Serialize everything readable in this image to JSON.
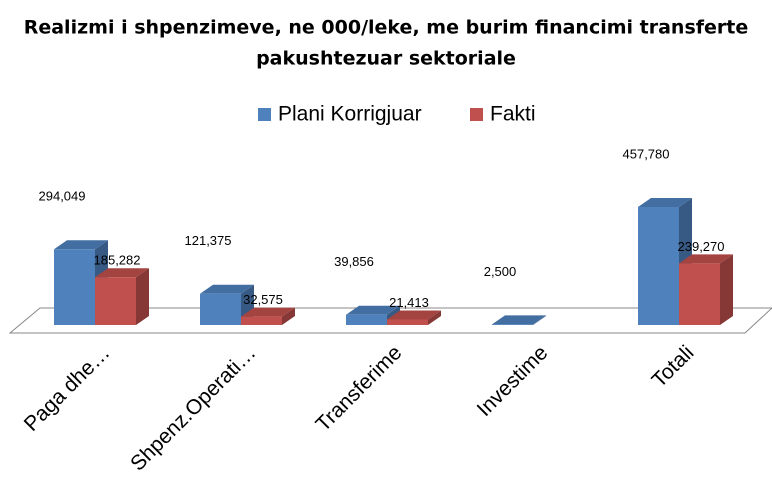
{
  "chart_data": {
    "type": "bar3d",
    "title": [
      "Realizmi i shpenzimeve, ne 000/leke, me burim financimi transferte",
      "pakushtezuar sektoriale"
    ],
    "categories": [
      "Paga dhe…",
      "Shpenz.Operati…",
      "Transferime",
      "Investime",
      "Totali"
    ],
    "series": [
      {
        "name": "Plani Korrigjuar",
        "color": "#4f81bd",
        "values": [
          294049,
          121375,
          39856,
          2500,
          457780
        ],
        "value_labels": [
          "294,049",
          "121,375",
          "39,856",
          "2,500",
          "457,780"
        ]
      },
      {
        "name": "Fakti",
        "color": "#c0504d",
        "values": [
          185282,
          32575,
          21413,
          null,
          239270
        ],
        "value_labels": [
          "185,282",
          "32,575",
          "21,413",
          null,
          "239,270"
        ]
      }
    ]
  }
}
